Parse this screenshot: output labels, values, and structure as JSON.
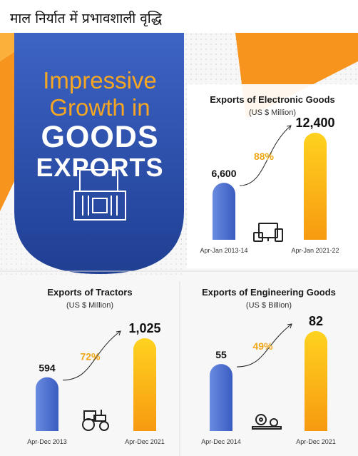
{
  "caption": "माल निर्यात में प्रभावशाली वृद्धि",
  "hero": {
    "line1": "Impressive",
    "line2": "Growth in",
    "line3": "GOODS",
    "line4": "EXPORTS"
  },
  "colors": {
    "blue_panel": "#2f56b0",
    "orange": "#f5a623",
    "bar_blue": "#4c6fcf",
    "bar_orange": "#f9b716",
    "growth_text": "#f0a81a"
  },
  "chart_data": [
    {
      "type": "bar",
      "title": "Exports of Electronic Goods",
      "subtitle": "(US $ Million)",
      "categories": [
        "Apr-Jan 2013-14",
        "Apr-Jan 2021-22"
      ],
      "values": [
        6600,
        12400
      ],
      "value_labels": [
        "6,600",
        "12,400"
      ],
      "growth_label": "88%",
      "icon": "electronics-icon"
    },
    {
      "type": "bar",
      "title": "Exports of Tractors",
      "subtitle": "(US $ Million)",
      "categories": [
        "Apr-Dec 2013",
        "Apr-Dec 2021"
      ],
      "values": [
        594,
        1025
      ],
      "value_labels": [
        "594",
        "1,025"
      ],
      "growth_label": "72%",
      "icon": "tractor-icon"
    },
    {
      "type": "bar",
      "title": "Exports of Engineering Goods",
      "subtitle": "(US $ Billion)",
      "categories": [
        "Apr-Dec 2014",
        "Apr-Dec 2021"
      ],
      "values": [
        55,
        82
      ],
      "value_labels": [
        "55",
        "82"
      ],
      "growth_label": "49%",
      "icon": "gears-icon"
    }
  ]
}
